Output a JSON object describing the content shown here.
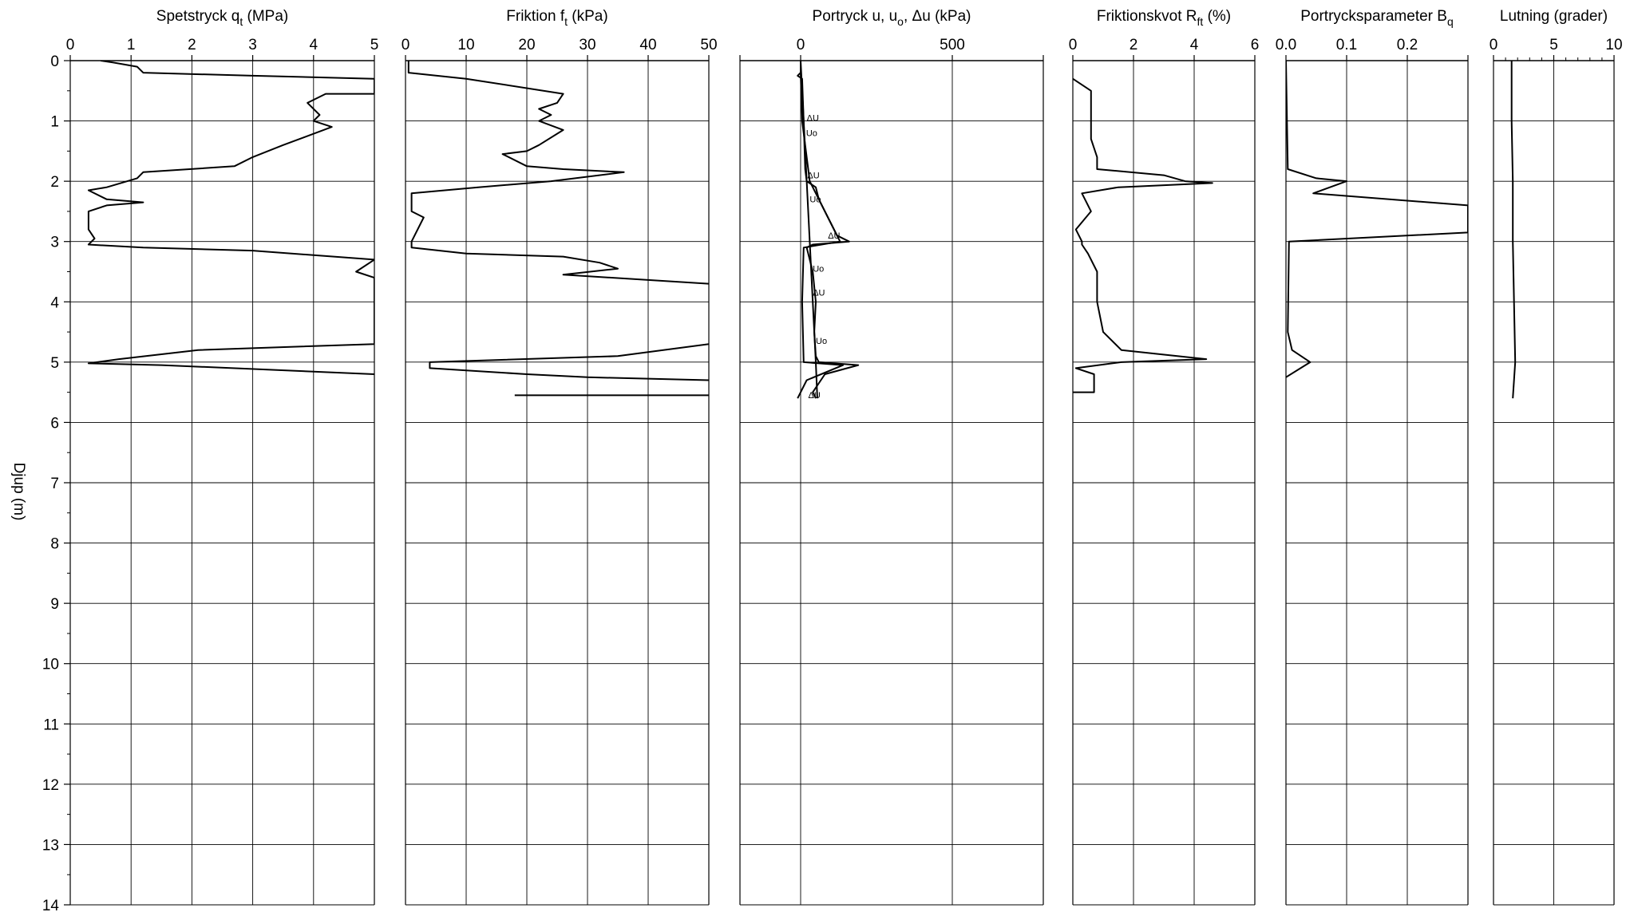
{
  "chart_data": {
    "type": "line",
    "depth_axis": {
      "label": "Djup  (m)",
      "range": [
        0,
        14
      ],
      "ticks": [
        "0",
        "1",
        "2",
        "3",
        "4",
        "5",
        "6",
        "7",
        "8",
        "9",
        "10",
        "11",
        "12",
        "13",
        "14"
      ],
      "inverted": true
    },
    "grid": true,
    "panels": [
      {
        "id": "qt",
        "title_main": "Spetstryck q",
        "title_sub": "t",
        "title_unit": "  (MPa)",
        "xlim": [
          0,
          5
        ],
        "xticks": [
          0,
          1,
          2,
          3,
          4,
          5
        ],
        "xtick_labels": [
          "0",
          "1",
          "2",
          "3",
          "4",
          "5"
        ],
        "series": [
          {
            "points": [
              [
                0.5,
                0
              ],
              [
                0.7,
                0.03
              ],
              [
                1.1,
                0.1
              ],
              [
                1.2,
                0.2
              ],
              [
                3.0,
                0.25
              ],
              [
                5.0,
                0.3
              ],
              [
                5.0,
                0.55
              ],
              [
                4.2,
                0.55
              ],
              [
                3.9,
                0.7
              ],
              [
                4.1,
                0.9
              ],
              [
                4.0,
                1.0
              ],
              [
                4.3,
                1.1
              ],
              [
                3.5,
                1.4
              ],
              [
                3.0,
                1.6
              ],
              [
                2.7,
                1.75
              ],
              [
                1.2,
                1.85
              ],
              [
                1.1,
                1.95
              ],
              [
                0.6,
                2.1
              ],
              [
                0.3,
                2.15
              ],
              [
                0.6,
                2.3
              ],
              [
                1.2,
                2.35
              ],
              [
                0.6,
                2.4
              ],
              [
                0.3,
                2.5
              ],
              [
                0.3,
                2.8
              ],
              [
                0.4,
                2.95
              ],
              [
                0.3,
                3.05
              ],
              [
                1.2,
                3.1
              ],
              [
                3.0,
                3.15
              ],
              [
                5.0,
                3.3
              ],
              [
                4.7,
                3.5
              ],
              [
                5.0,
                3.6
              ],
              [
                5.0,
                4.7
              ],
              [
                2.1,
                4.8
              ],
              [
                0.8,
                4.95
              ],
              [
                0.3,
                5.02
              ],
              [
                1.5,
                5.05
              ],
              [
                5.0,
                5.2
              ]
            ]
          }
        ],
        "annotations": []
      },
      {
        "id": "ft",
        "title_main": "Friktion f",
        "title_sub": "t",
        "title_unit": "  (kPa)",
        "xlim": [
          0,
          50
        ],
        "xticks": [
          0,
          10,
          20,
          30,
          40,
          50
        ],
        "xtick_labels": [
          "0",
          "10",
          "20",
          "30",
          "40",
          "50"
        ],
        "series": [
          {
            "points": [
              [
                0.5,
                0
              ],
              [
                0.5,
                0.2
              ],
              [
                10,
                0.3
              ],
              [
                26,
                0.55
              ],
              [
                25,
                0.7
              ],
              [
                22,
                0.8
              ],
              [
                24,
                0.9
              ],
              [
                22,
                1.0
              ],
              [
                26,
                1.15
              ],
              [
                22,
                1.4
              ],
              [
                20,
                1.5
              ],
              [
                16,
                1.55
              ],
              [
                20,
                1.75
              ],
              [
                26,
                1.8
              ],
              [
                36,
                1.85
              ],
              [
                24,
                2.0
              ],
              [
                12,
                2.1
              ],
              [
                1.0,
                2.2
              ],
              [
                1.0,
                2.5
              ],
              [
                3.0,
                2.6
              ],
              [
                1.0,
                3.0
              ],
              [
                1.0,
                3.1
              ],
              [
                10,
                3.2
              ],
              [
                26,
                3.25
              ],
              [
                32,
                3.35
              ],
              [
                35,
                3.45
              ],
              [
                26,
                3.55
              ],
              [
                50,
                3.7
              ]
            ]
          },
          {
            "points": [
              [
                50,
                4.7
              ],
              [
                35,
                4.9
              ],
              [
                4,
                5.0
              ],
              [
                4,
                5.1
              ],
              [
                20,
                5.2
              ],
              [
                30,
                5.25
              ],
              [
                50,
                5.3
              ]
            ]
          },
          {
            "points": [
              [
                18,
                5.55
              ],
              [
                50,
                5.55
              ]
            ]
          }
        ],
        "annotations": []
      },
      {
        "id": "u",
        "title_main": "Portryck u, u",
        "title_sub": "o",
        "title_unit": ", Δu  (kPa)",
        "xlim": [
          -200,
          800
        ],
        "xticks": [
          -200,
          0,
          500,
          800
        ],
        "xtick_labels": [
          "",
          "0",
          "500",
          ""
        ],
        "series": [
          {
            "points": [
              [
                0,
                0
              ],
              [
                0,
                0.2
              ],
              [
                -10,
                0.25
              ],
              [
                5,
                0.3
              ],
              [
                10,
                1.0
              ],
              [
                15,
                1.8
              ],
              [
                20,
                2.0
              ],
              [
                50,
                2.1
              ],
              [
                60,
                2.3
              ],
              [
                80,
                2.5
              ],
              [
                100,
                2.7
              ],
              [
                120,
                2.9
              ],
              [
                160,
                3.0
              ],
              [
                40,
                3.05
              ],
              [
                20,
                3.1
              ],
              [
                40,
                3.5
              ],
              [
                50,
                4.0
              ],
              [
                45,
                4.5
              ],
              [
                50,
                4.9
              ],
              [
                60,
                5.0
              ],
              [
                190,
                5.05
              ],
              [
                80,
                5.2
              ],
              [
                40,
                5.5
              ],
              [
                50,
                5.6
              ]
            ]
          },
          {
            "points": [
              [
                0,
                0
              ],
              [
                10,
                1.0
              ],
              [
                20,
                2.0
              ],
              [
                30,
                3.0
              ],
              [
                40,
                4.0
              ],
              [
                50,
                5.0
              ],
              [
                55,
                5.6
              ]
            ]
          },
          {
            "points": [
              [
                0,
                0.2
              ],
              [
                5,
                1.0
              ],
              [
                30,
                2.0
              ],
              [
                80,
                2.5
              ],
              [
                130,
                3.0
              ],
              [
                10,
                3.1
              ],
              [
                5,
                4.0
              ],
              [
                10,
                5.0
              ],
              [
                140,
                5.05
              ],
              [
                20,
                5.3
              ],
              [
                -10,
                5.6
              ]
            ]
          }
        ],
        "annotations": [
          {
            "text": "ΔU",
            "x": 20,
            "y": 1.0
          },
          {
            "text": "Uo",
            "x": 18,
            "y": 1.25
          },
          {
            "text": "ΔU",
            "x": 22,
            "y": 1.95
          },
          {
            "text": "Uo",
            "x": 30,
            "y": 2.35
          },
          {
            "text": "ΔU",
            "x": 90,
            "y": 2.95
          },
          {
            "text": "Uo",
            "x": 40,
            "y": 3.5
          },
          {
            "text": "ΔU",
            "x": 40,
            "y": 3.9
          },
          {
            "text": "Uo",
            "x": 50,
            "y": 4.7
          },
          {
            "text": "ΔU",
            "x": 25,
            "y": 5.6
          }
        ]
      },
      {
        "id": "rf",
        "title_main": "Friktionskvot R",
        "title_sub": "ft",
        "title_unit": "  (%)",
        "xlim": [
          0,
          6
        ],
        "xticks": [
          0,
          2,
          4,
          6
        ],
        "xtick_labels": [
          "0",
          "2",
          "4",
          "6"
        ],
        "series": [
          {
            "points": [
              [
                0,
                0.3
              ],
              [
                0.6,
                0.5
              ],
              [
                0.6,
                1.3
              ],
              [
                0.8,
                1.6
              ],
              [
                0.8,
                1.8
              ],
              [
                3.0,
                1.9
              ],
              [
                3.7,
                2.0
              ],
              [
                4.6,
                2.03
              ],
              [
                1.5,
                2.1
              ],
              [
                0.3,
                2.2
              ],
              [
                0.6,
                2.5
              ],
              [
                0.1,
                2.8
              ],
              [
                0.3,
                3.0
              ],
              [
                0.3,
                3.05
              ],
              [
                0.5,
                3.2
              ],
              [
                0.8,
                3.5
              ],
              [
                0.8,
                4.0
              ],
              [
                1.0,
                4.5
              ],
              [
                1.6,
                4.8
              ],
              [
                4.4,
                4.95
              ],
              [
                1.6,
                5.0
              ],
              [
                0.1,
                5.1
              ],
              [
                0.7,
                5.2
              ],
              [
                0.7,
                5.5
              ],
              [
                0,
                5.5
              ]
            ]
          }
        ],
        "annotations": []
      },
      {
        "id": "bq",
        "title_main": "Portrycksparameter B",
        "title_sub": "q",
        "title_unit": "",
        "xlim": [
          0,
          0.3
        ],
        "xticks": [
          0,
          0.1,
          0.2,
          0.3
        ],
        "xtick_labels": [
          "0.0",
          "0.1",
          "0.2",
          ""
        ],
        "series": [
          {
            "points": [
              [
                0,
                0
              ],
              [
                0.003,
                1.8
              ],
              [
                0.05,
                1.95
              ],
              [
                0.1,
                2.0
              ],
              [
                0.045,
                2.2
              ],
              [
                0.3,
                2.4
              ],
              [
                0.3,
                2.85
              ],
              [
                0.005,
                3.0
              ],
              [
                0.003,
                4.5
              ],
              [
                0.01,
                4.8
              ],
              [
                0.04,
                5.0
              ],
              [
                0,
                5.25
              ]
            ]
          }
        ],
        "annotations": []
      },
      {
        "id": "lutning",
        "title_main": "Lutning (grader)",
        "title_sub": "",
        "title_unit": "",
        "xlim": [
          0,
          10
        ],
        "xticks": [
          0,
          5,
          10
        ],
        "xtick_labels": [
          "0",
          "5",
          "10"
        ],
        "series": [
          {
            "points": [
              [
                1.5,
                0
              ],
              [
                1.5,
                1.0
              ],
              [
                1.6,
                2.0
              ],
              [
                1.6,
                3.0
              ],
              [
                1.7,
                4.0
              ],
              [
                1.8,
                5.0
              ],
              [
                1.6,
                5.6
              ]
            ]
          }
        ],
        "annotations": []
      }
    ]
  }
}
